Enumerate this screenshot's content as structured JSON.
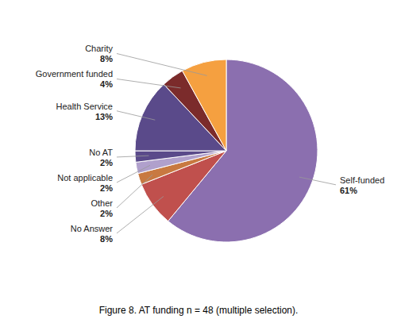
{
  "chart_data": {
    "type": "pie",
    "title": "Figure 8. AT funding n = 48 (multiple selection).",
    "categories": [
      "Self-funded",
      "No Answer",
      "Other",
      "Not applicable",
      "No AT",
      "Health Service",
      "Government funded",
      "Charity"
    ],
    "values": [
      61,
      8,
      2,
      2,
      2,
      13,
      4,
      8
    ],
    "value_labels": [
      "61%",
      "8%",
      "2%",
      "2%",
      "2%",
      "13%",
      "4%",
      "8%"
    ],
    "colors": [
      "#8B6FAF",
      "#C0504D",
      "#C87941",
      "#B0A0CC",
      "#5A4A8A",
      "#5A4A8A",
      "#7B2B2B",
      "#F5A040"
    ]
  }
}
